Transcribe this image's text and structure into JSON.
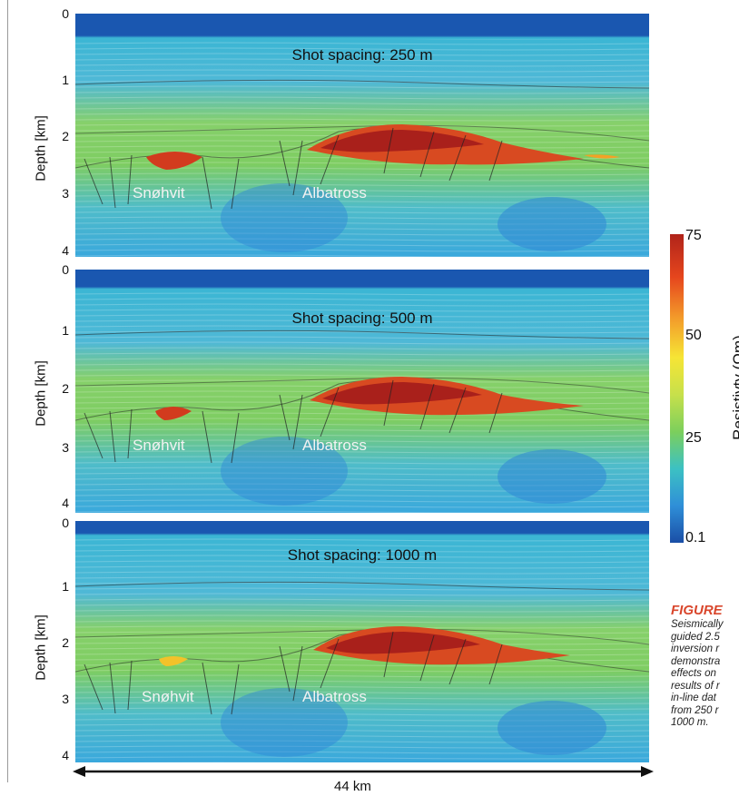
{
  "panels": [
    {
      "label": "Shot spacing: 250 m",
      "fields": [
        "Snøhvit",
        "Albatross"
      ],
      "depth_ticks": [
        "0",
        "1",
        "2",
        "3",
        "4"
      ]
    },
    {
      "label": "Shot spacing: 500 m",
      "fields": [
        "Snøhvit",
        "Albatross"
      ],
      "depth_ticks": [
        "0",
        "1",
        "2",
        "3",
        "4"
      ]
    },
    {
      "label": "Shot spacing: 1000 m",
      "fields": [
        "Snøhvit",
        "Albatross"
      ],
      "depth_ticks": [
        "0",
        "1",
        "2",
        "3",
        "4"
      ]
    }
  ],
  "depth_axis_title": "Depth [km]",
  "colorbar": {
    "title": "Resistivty (Ωm)",
    "ticks": [
      "75",
      "50",
      "25",
      "0.1"
    ]
  },
  "scale": {
    "label": "44 km"
  },
  "caption": {
    "heading": "FIGURE",
    "lines": [
      "Seismically",
      "guided 2.5",
      "inversion r",
      "demonstra",
      "effects on",
      "results of r",
      "in-line dat",
      "from 250 r",
      "1000 m."
    ]
  },
  "colors": {
    "deep_blue": "#1a4ea6",
    "green": "#7ccf5c",
    "red": "#b0231a",
    "caption_accent": "#d9462c"
  }
}
